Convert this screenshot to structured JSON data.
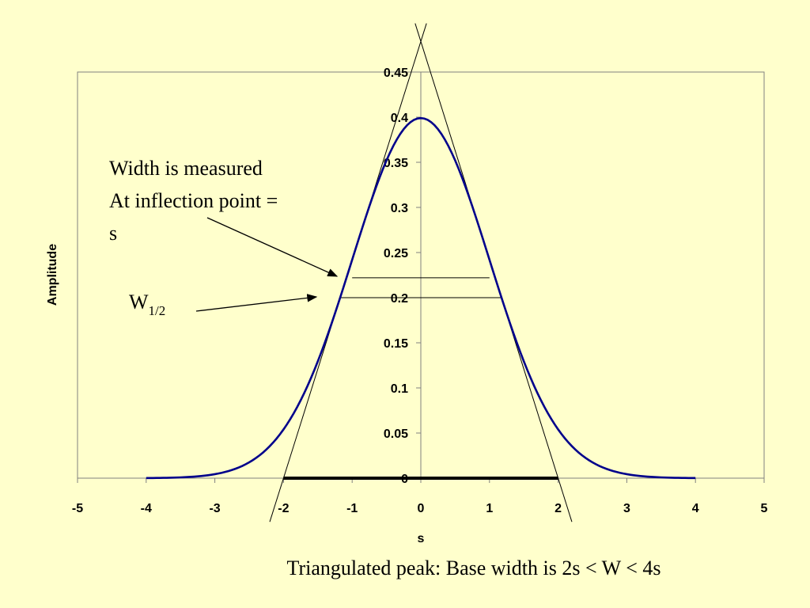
{
  "chart_data": {
    "type": "line",
    "xlabel": "s",
    "ylabel": "Amplitude",
    "xlim": [
      -5,
      5
    ],
    "ylim": [
      0,
      0.45
    ],
    "x_ticks": [
      "-5",
      "-4",
      "-3",
      "-2",
      "-1",
      "0",
      "1",
      "2",
      "3",
      "4",
      "5"
    ],
    "y_ticks": [
      "0",
      "0.05",
      "0.1",
      "0.15",
      "0.2",
      "0.25",
      "0.3",
      "0.35",
      "0.4",
      "0.45"
    ],
    "grid": false,
    "series": [
      {
        "color": "#00008b",
        "x": [
          -4,
          -3.5,
          -3,
          -2.5,
          -2,
          -1.5,
          -1,
          -0.5,
          0,
          0.5,
          1,
          1.5,
          2,
          2.5,
          3,
          3.5,
          4
        ],
        "values": [
          0.0001,
          0.0009,
          0.0044,
          0.0175,
          0.054,
          0.1295,
          0.242,
          0.3521,
          0.3989,
          0.3521,
          0.242,
          0.1295,
          0.054,
          0.0175,
          0.0044,
          0.0009,
          0.0001
        ]
      }
    ],
    "tangent_lines": [
      {
        "x": [
          -2.0,
          0.0
        ],
        "y": [
          0.0,
          0.4839
        ]
      },
      {
        "x": [
          0.0,
          2.0
        ],
        "y": [
          0.4839,
          0.0
        ]
      }
    ],
    "width_lines": [
      {
        "x": [
          -1.0,
          1.0
        ],
        "y": [
          0.222,
          0.222
        ]
      },
      {
        "x": [
          -1.18,
          1.18
        ],
        "y": [
          0.2,
          0.2
        ]
      }
    ],
    "base_segment": {
      "x": [
        -2.0,
        2.0
      ],
      "y": 0
    }
  },
  "annotations": {
    "inflection_line1": "Width is measured",
    "inflection_line2": "At inflection point =",
    "inflection_line3": "s",
    "w_half_main": "W",
    "w_half_sub": "1/2",
    "caption": "Triangulated peak: Base width is 2s < W < 4s"
  },
  "colors": {
    "background": "#ffffcc",
    "curve": "#00008b",
    "lines": "#000000"
  }
}
